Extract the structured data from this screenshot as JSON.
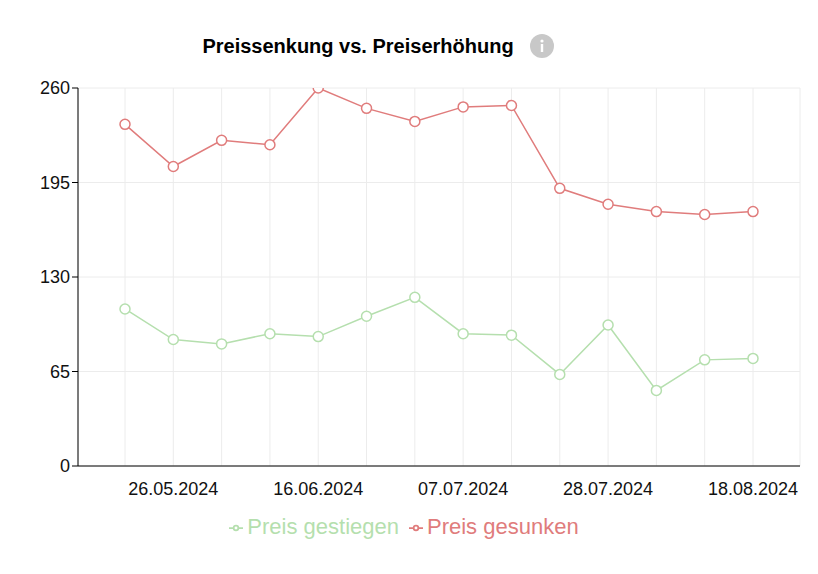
{
  "chart_data": {
    "type": "line",
    "title": "Preissenkung vs. Preiserhöhung",
    "categories": [
      null,
      "26.05.2024",
      null,
      null,
      "16.06.2024",
      null,
      null,
      "07.07.2024",
      null,
      null,
      "28.07.2024",
      null,
      null,
      "18.08.2024"
    ],
    "series": [
      {
        "name": "Preis gestiegen",
        "color": "#b5dfae",
        "marker": "circle",
        "values": [
          108,
          87,
          84,
          91,
          89,
          103,
          116,
          91,
          90,
          63,
          97,
          52,
          73,
          74
        ]
      },
      {
        "name": "Preis gesunken",
        "color": "#e07c7c",
        "marker": "circle",
        "values": [
          235,
          206,
          224,
          221,
          260,
          246,
          237,
          247,
          248,
          191,
          180,
          175,
          173,
          175
        ]
      }
    ],
    "ylim": [
      0,
      260
    ],
    "yticks": [
      0,
      65,
      130,
      195,
      260
    ],
    "grid": true,
    "legend": "bottom"
  }
}
